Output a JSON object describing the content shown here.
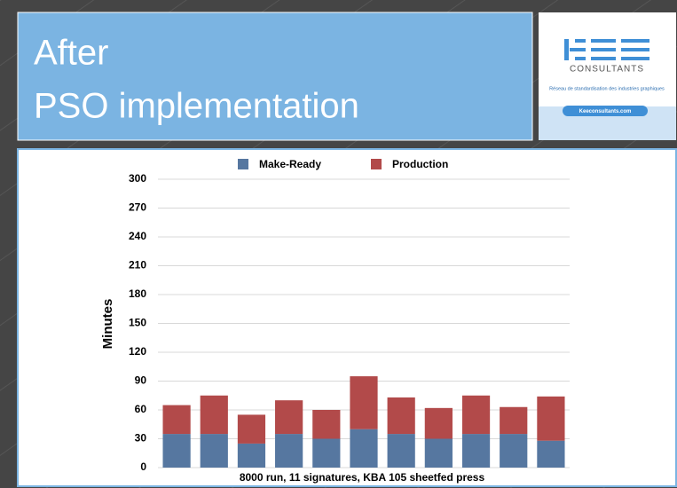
{
  "slide": {
    "title_lines": [
      "After",
      "PSO implementation"
    ],
    "logo": {
      "name": "CONSULTANTS",
      "tagline": "Réseau de standardisation des industries graphiques",
      "url": "Keeconsultants.com"
    }
  },
  "chart_data": {
    "type": "stacked_bar",
    "categories": [
      null,
      null,
      null,
      null,
      null,
      null,
      null,
      null,
      null,
      null,
      null
    ],
    "series": [
      {
        "name": "Make-Ready",
        "color": "#5677a0",
        "values": [
          35,
          35,
          25,
          35,
          30,
          40,
          35,
          30,
          35,
          35,
          28
        ]
      },
      {
        "name": "Production",
        "color": "#b24a4a",
        "values": [
          30,
          40,
          30,
          35,
          30,
          55,
          38,
          32,
          40,
          28,
          46
        ]
      }
    ],
    "ylim": [
      0,
      300
    ],
    "yticks": [
      0,
      30,
      60,
      90,
      120,
      150,
      180,
      210,
      240,
      270,
      300
    ],
    "y_label": "Minutes",
    "x_label": "8000 run, 11  signatures, KBA 105 sheetfed press",
    "grid": true,
    "legend": "top"
  }
}
